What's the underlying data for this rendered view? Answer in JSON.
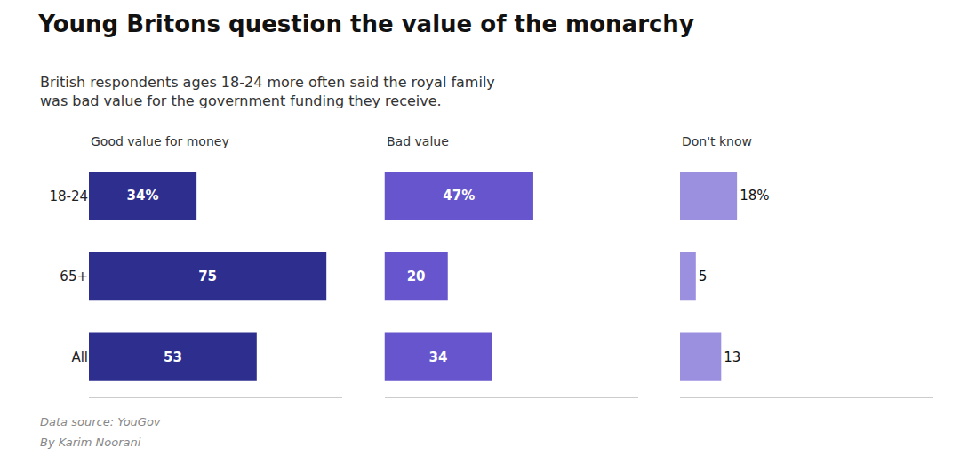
{
  "chart_data": {
    "type": "bar",
    "orientation": "horizontal",
    "title": "Young Britons question the value of the monarchy",
    "subtitle": "British respondents ages 18-24 more often said the royal family\nwas bad value for the government funding they receive.",
    "categories": [
      "18-24",
      "65+",
      "All"
    ],
    "series": [
      {
        "name": "Good value for money",
        "color": "#2e2e8f",
        "values": [
          34,
          75,
          53
        ],
        "value_labels": [
          "34%",
          "75",
          "53"
        ]
      },
      {
        "name": "Bad value",
        "color": "#6655cc",
        "values": [
          47,
          20,
          34
        ],
        "value_labels": [
          "47%",
          "20",
          "34"
        ]
      },
      {
        "name": "Don't know",
        "color": "#9b8fe0",
        "values": [
          18,
          5,
          13
        ],
        "value_labels": [
          "18%",
          "5",
          "13"
        ]
      }
    ],
    "xlim": [
      0,
      80
    ],
    "tick_labels": "y",
    "data_labels": true,
    "annotations": [
      "Data source: YouGov",
      "By Karim Noorani"
    ]
  }
}
